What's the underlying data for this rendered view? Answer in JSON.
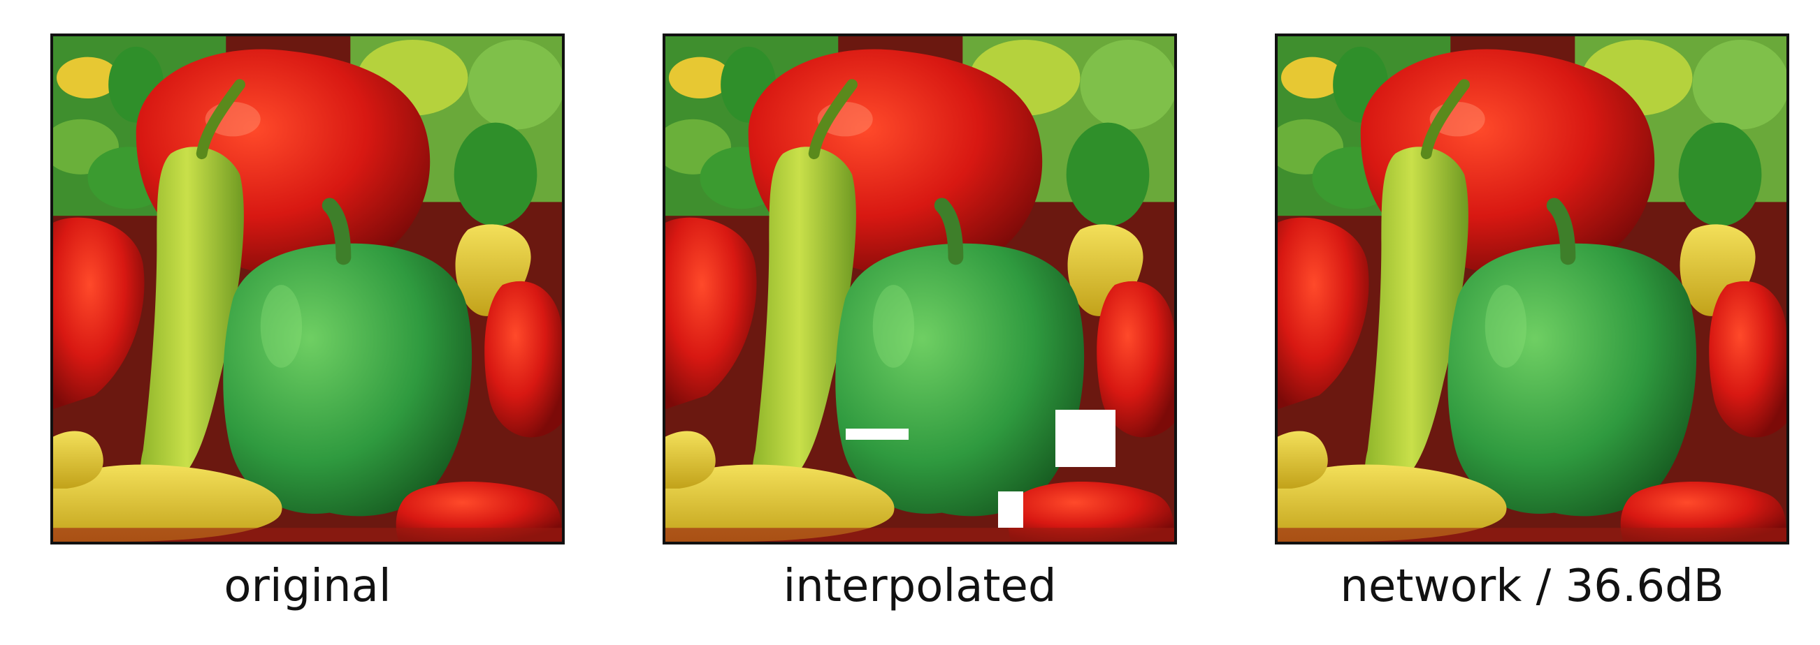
{
  "panels": [
    {
      "id": "original",
      "caption": "original"
    },
    {
      "id": "interpolated",
      "caption": "interpolated"
    },
    {
      "id": "network",
      "caption": "network / 36.6dB"
    }
  ],
  "colors": {
    "background": "#ffffff",
    "frame_border": "#111111",
    "red_pepper": "#c8140f",
    "green_pepper": "#2f9a3f",
    "yellow_green_pepper": "#b9d23a",
    "yellow_pepper": "#e8d23a",
    "mask": "#ffffff"
  }
}
